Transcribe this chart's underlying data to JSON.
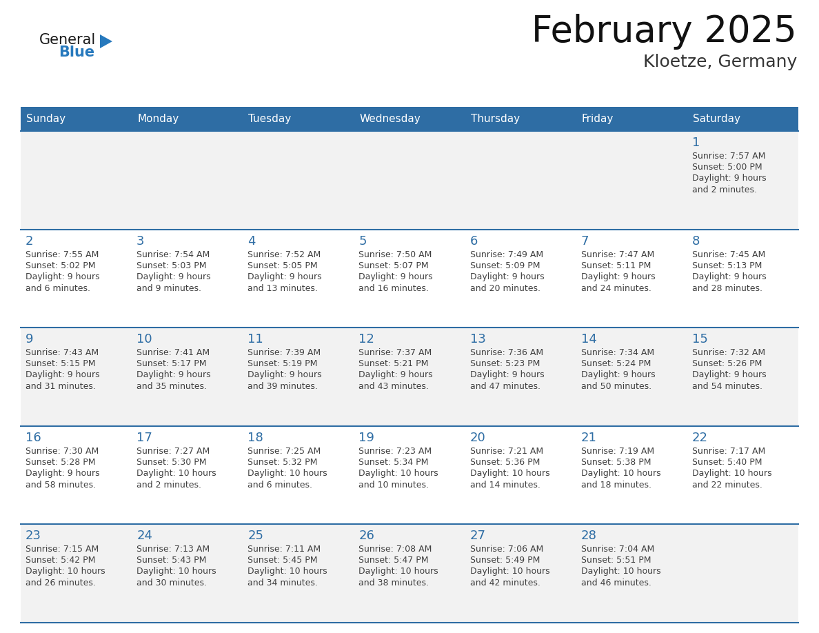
{
  "title": "February 2025",
  "subtitle": "Kloetze, Germany",
  "header_bg": "#2E6DA4",
  "header_text": "#FFFFFF",
  "day_names": [
    "Sunday",
    "Monday",
    "Tuesday",
    "Wednesday",
    "Thursday",
    "Friday",
    "Saturday"
  ],
  "cell_bg_white": "#FFFFFF",
  "cell_bg_gray": "#F2F2F2",
  "date_color": "#2E6DA4",
  "text_color": "#404040",
  "line_color": "#2E6DA4",
  "logo_general_color": "#1a1a1a",
  "logo_blue_color": "#2779BD",
  "title_color": "#111111",
  "subtitle_color": "#333333",
  "calendar_data": [
    [
      null,
      null,
      null,
      null,
      null,
      null,
      {
        "day": 1,
        "sunrise": "7:57 AM",
        "sunset": "5:00 PM",
        "daylight": "9 hours\nand 2 minutes."
      }
    ],
    [
      {
        "day": 2,
        "sunrise": "7:55 AM",
        "sunset": "5:02 PM",
        "daylight": "9 hours\nand 6 minutes."
      },
      {
        "day": 3,
        "sunrise": "7:54 AM",
        "sunset": "5:03 PM",
        "daylight": "9 hours\nand 9 minutes."
      },
      {
        "day": 4,
        "sunrise": "7:52 AM",
        "sunset": "5:05 PM",
        "daylight": "9 hours\nand 13 minutes."
      },
      {
        "day": 5,
        "sunrise": "7:50 AM",
        "sunset": "5:07 PM",
        "daylight": "9 hours\nand 16 minutes."
      },
      {
        "day": 6,
        "sunrise": "7:49 AM",
        "sunset": "5:09 PM",
        "daylight": "9 hours\nand 20 minutes."
      },
      {
        "day": 7,
        "sunrise": "7:47 AM",
        "sunset": "5:11 PM",
        "daylight": "9 hours\nand 24 minutes."
      },
      {
        "day": 8,
        "sunrise": "7:45 AM",
        "sunset": "5:13 PM",
        "daylight": "9 hours\nand 28 minutes."
      }
    ],
    [
      {
        "day": 9,
        "sunrise": "7:43 AM",
        "sunset": "5:15 PM",
        "daylight": "9 hours\nand 31 minutes."
      },
      {
        "day": 10,
        "sunrise": "7:41 AM",
        "sunset": "5:17 PM",
        "daylight": "9 hours\nand 35 minutes."
      },
      {
        "day": 11,
        "sunrise": "7:39 AM",
        "sunset": "5:19 PM",
        "daylight": "9 hours\nand 39 minutes."
      },
      {
        "day": 12,
        "sunrise": "7:37 AM",
        "sunset": "5:21 PM",
        "daylight": "9 hours\nand 43 minutes."
      },
      {
        "day": 13,
        "sunrise": "7:36 AM",
        "sunset": "5:23 PM",
        "daylight": "9 hours\nand 47 minutes."
      },
      {
        "day": 14,
        "sunrise": "7:34 AM",
        "sunset": "5:24 PM",
        "daylight": "9 hours\nand 50 minutes."
      },
      {
        "day": 15,
        "sunrise": "7:32 AM",
        "sunset": "5:26 PM",
        "daylight": "9 hours\nand 54 minutes."
      }
    ],
    [
      {
        "day": 16,
        "sunrise": "7:30 AM",
        "sunset": "5:28 PM",
        "daylight": "9 hours\nand 58 minutes."
      },
      {
        "day": 17,
        "sunrise": "7:27 AM",
        "sunset": "5:30 PM",
        "daylight": "10 hours\nand 2 minutes."
      },
      {
        "day": 18,
        "sunrise": "7:25 AM",
        "sunset": "5:32 PM",
        "daylight": "10 hours\nand 6 minutes."
      },
      {
        "day": 19,
        "sunrise": "7:23 AM",
        "sunset": "5:34 PM",
        "daylight": "10 hours\nand 10 minutes."
      },
      {
        "day": 20,
        "sunrise": "7:21 AM",
        "sunset": "5:36 PM",
        "daylight": "10 hours\nand 14 minutes."
      },
      {
        "day": 21,
        "sunrise": "7:19 AM",
        "sunset": "5:38 PM",
        "daylight": "10 hours\nand 18 minutes."
      },
      {
        "day": 22,
        "sunrise": "7:17 AM",
        "sunset": "5:40 PM",
        "daylight": "10 hours\nand 22 minutes."
      }
    ],
    [
      {
        "day": 23,
        "sunrise": "7:15 AM",
        "sunset": "5:42 PM",
        "daylight": "10 hours\nand 26 minutes."
      },
      {
        "day": 24,
        "sunrise": "7:13 AM",
        "sunset": "5:43 PM",
        "daylight": "10 hours\nand 30 minutes."
      },
      {
        "day": 25,
        "sunrise": "7:11 AM",
        "sunset": "5:45 PM",
        "daylight": "10 hours\nand 34 minutes."
      },
      {
        "day": 26,
        "sunrise": "7:08 AM",
        "sunset": "5:47 PM",
        "daylight": "10 hours\nand 38 minutes."
      },
      {
        "day": 27,
        "sunrise": "7:06 AM",
        "sunset": "5:49 PM",
        "daylight": "10 hours\nand 42 minutes."
      },
      {
        "day": 28,
        "sunrise": "7:04 AM",
        "sunset": "5:51 PM",
        "daylight": "10 hours\nand 46 minutes."
      },
      null
    ]
  ]
}
